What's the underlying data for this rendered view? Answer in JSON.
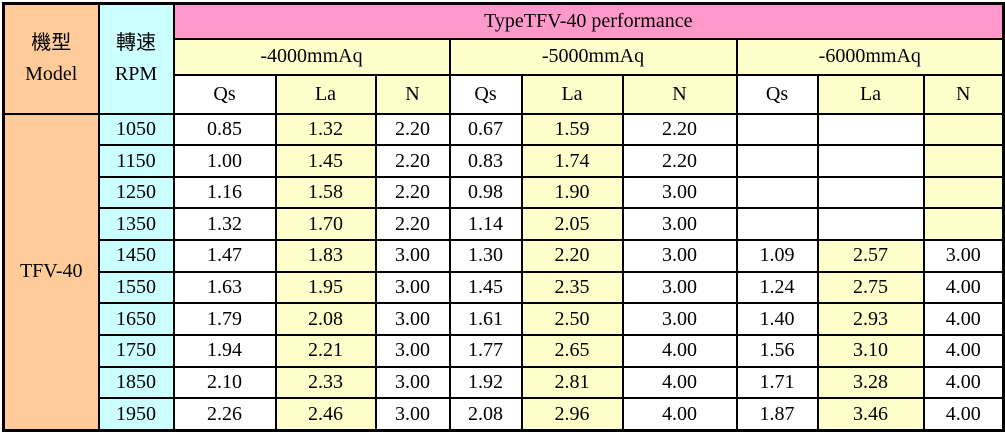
{
  "title": "TypeTFV-40 performance",
  "headers": {
    "model": {
      "zh": "機型",
      "en": "Model"
    },
    "rpm": {
      "zh": "轉速",
      "en": "RPM"
    }
  },
  "model_value": "TFV-40",
  "pressure_groups": [
    "-4000mmAq",
    "-5000mmAq",
    "-6000mmAq"
  ],
  "sub_headers": [
    "Qs",
    "La",
    "N"
  ],
  "rows": [
    {
      "rpm": "1050",
      "values": [
        "0.85",
        "1.32",
        "2.20",
        "0.67",
        "1.59",
        "2.20",
        "",
        "",
        ""
      ]
    },
    {
      "rpm": "1150",
      "values": [
        "1.00",
        "1.45",
        "2.20",
        "0.83",
        "1.74",
        "2.20",
        "",
        "",
        ""
      ]
    },
    {
      "rpm": "1250",
      "values": [
        "1.16",
        "1.58",
        "2.20",
        "0.98",
        "1.90",
        "3.00",
        "",
        "",
        ""
      ]
    },
    {
      "rpm": "1350",
      "values": [
        "1.32",
        "1.70",
        "2.20",
        "1.14",
        "2.05",
        "3.00",
        "",
        "",
        ""
      ]
    },
    {
      "rpm": "1450",
      "values": [
        "1.47",
        "1.83",
        "3.00",
        "1.30",
        "2.20",
        "3.00",
        "1.09",
        "2.57",
        "3.00"
      ]
    },
    {
      "rpm": "1550",
      "values": [
        "1.63",
        "1.95",
        "3.00",
        "1.45",
        "2.35",
        "3.00",
        "1.24",
        "2.75",
        "4.00"
      ]
    },
    {
      "rpm": "1650",
      "values": [
        "1.79",
        "2.08",
        "3.00",
        "1.61",
        "2.50",
        "3.00",
        "1.40",
        "2.93",
        "4.00"
      ]
    },
    {
      "rpm": "1750",
      "values": [
        "1.94",
        "2.21",
        "3.00",
        "1.77",
        "2.65",
        "4.00",
        "1.56",
        "3.10",
        "4.00"
      ]
    },
    {
      "rpm": "1850",
      "values": [
        "2.10",
        "2.33",
        "3.00",
        "1.92",
        "2.81",
        "4.00",
        "1.71",
        "3.28",
        "4.00"
      ]
    },
    {
      "rpm": "1950",
      "values": [
        "2.26",
        "2.46",
        "3.00",
        "2.08",
        "2.96",
        "4.00",
        "1.87",
        "3.46",
        "4.00"
      ]
    }
  ],
  "colors": {
    "pink": "#FF99CC",
    "orange": "#FFCC99",
    "cyan": "#CCFFFF",
    "yellow": "#FFFFCC",
    "border": "#000000"
  }
}
